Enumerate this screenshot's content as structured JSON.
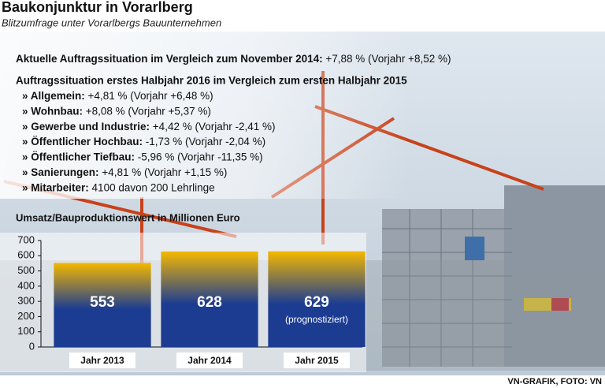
{
  "header": {
    "title": "Baukonjunktur in Vorarlberg",
    "subtitle": "Blitzumfrage unter Vorarlbergs Bauunternehmen"
  },
  "facts": {
    "current": {
      "label": "Aktuelle Auftragssituation im Vergleich zum November 2014:",
      "text": "+7,88 % (Vorjahr +8,52 %)"
    },
    "heading": "Auftragssituation erstes Halbjahr 2016 im Vergleich zum ersten Halbjahr 2015",
    "items": [
      {
        "label": "» Allgemein:",
        "text": "+4,81 % (Vorjahr +6,48 %)"
      },
      {
        "label": "» Wohnbau:",
        "text": "+8,08 % (Vorjahr +5,37 %)"
      },
      {
        "label": "» Gewerbe und Industrie:",
        "text": "+4,42 % (Vorjahr -2,41 %)"
      },
      {
        "label": "» Öffentlicher Hochbau:",
        "text": "-1,73 % (Vorjahr -2,04 %)"
      },
      {
        "label": "» Öffentlicher Tiefbau:",
        "text": "-5,96 % (Vorjahr -11,35 %)"
      },
      {
        "label": "» Sanierungen:",
        "text": "+4,81 % (Vorjahr +1,15 %)"
      },
      {
        "label": "» Mitarbeiter:",
        "text": "4100 davon 200 Lehrlinge"
      }
    ]
  },
  "chart_data": {
    "type": "bar",
    "title": "Umsatz/Bauproduktionswert in Millionen Euro",
    "categories": [
      "Jahr 2013",
      "Jahr 2014",
      "Jahr 2015"
    ],
    "values": [
      553,
      628,
      629
    ],
    "annotations": [
      {
        "category": "Jahr 2015",
        "text": "(prognostiziert)"
      }
    ],
    "gradient": [
      "#f4b800",
      "#1c3c92"
    ],
    "ylim": [
      0,
      700
    ],
    "yticks": [
      0,
      100,
      200,
      300,
      400,
      500,
      600,
      700
    ]
  },
  "credit": "VN-GRAFIK, FOTO: VN"
}
